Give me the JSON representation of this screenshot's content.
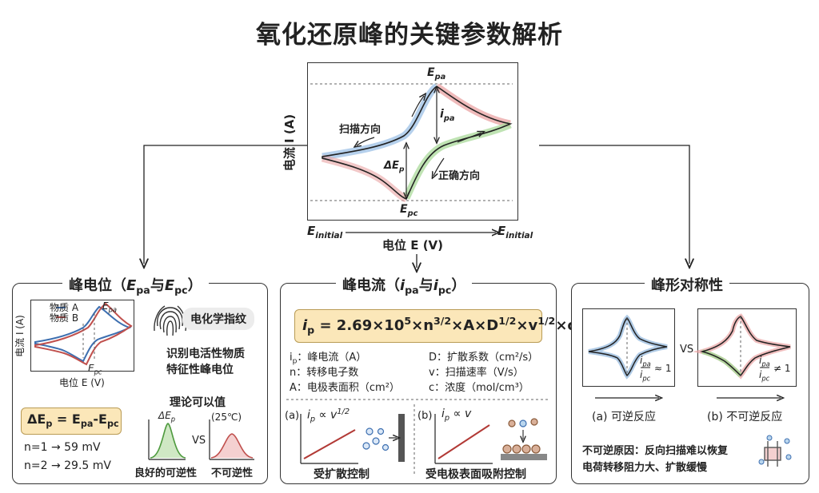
{
  "title": "氧化还原峰的关键参数解析",
  "main_cv": {
    "y_axis_label": "电流 I (A)",
    "x_axis_label": "电位 E (V)",
    "e_initial_left": "E",
    "e_initial_right": "E",
    "sub_initial": "initial",
    "epa": "E",
    "sub_pa": "pa",
    "ipa": "i",
    "ipa_sub": "pa",
    "epc": "E",
    "sub_pc": "pc",
    "delta_ep": "ΔE",
    "sub_p": "p",
    "scan_dir": "扫描方向",
    "forward_dir": "正确方向"
  },
  "left_panel": {
    "title_main": "峰电位（",
    "title_epa": "E",
    "title_epa_sub": "pa",
    "title_and": "与",
    "title_epc": "E",
    "title_epc_sub": "pc",
    "title_close": "）",
    "legend_a": "物质 A",
    "legend_b": "物质 B",
    "mini_epa": "E",
    "mini_epa_sub": "pa",
    "mini_epc": "E",
    "mini_epc_sub": "pc",
    "mini_y": "电流 I (A)",
    "mini_x": "电位 E (V)",
    "badge": "电化学指纹",
    "identify_1": "识别电活性物质",
    "identify_2": "特征性峰电位",
    "formula": "ΔE",
    "formula_sub": "p",
    "formula_eq": " = E",
    "formula_pa": "pa",
    "formula_minus": "-E",
    "formula_pc": "pc",
    "n1": "n=1 → 59 mV",
    "n2": "n=2 → 29.5 mV",
    "theory": "理论可以值",
    "small_dep": "ΔE",
    "small_dep_sub": "p",
    "vs": "VS",
    "temp": "(25℃)",
    "good_rev": "良好的可逆性",
    "irrev": "不可逆性"
  },
  "mid_panel": {
    "title_main": "峰电流（",
    "title_ipa": "i",
    "title_ipa_sub": "pa",
    "title_and": "与",
    "title_ipc": "i",
    "title_ipc_sub": "pc",
    "title_close": "）",
    "formula_ip": "i",
    "formula_ip_sub": "p",
    "formula_rest_1": " = 2.69×10",
    "formula_sup5": "5",
    "formula_rest_2": "×n",
    "formula_sup32": "3/2",
    "formula_rest_3": "×A×D",
    "formula_sup12a": "1/2",
    "formula_rest_4": "×v",
    "formula_sup12b": "1/2",
    "formula_rest_5": "×c",
    "def_ip": "i",
    "def_ip_sub": "p",
    "def_ip_text": "：峰电流（A）",
    "def_n": "n：转移电子数",
    "def_a": "A：电极表面积（cm²）",
    "def_d": "D：扩散系数（cm²/s）",
    "def_v": "v：扫描速率（V/s）",
    "def_c": "c：浓度（mol/cm³）",
    "a_label": "(a)",
    "a_rel": "i",
    "a_rel_sub": "p",
    "a_rel_text": " ∝ v",
    "a_rel_sup": "1/2",
    "b_label": "(b)",
    "b_rel": "i",
    "b_rel_sub": "p",
    "b_rel_text": " ∝ v",
    "a_caption": "受扩散控制",
    "b_caption": "受电极表面吸附控制"
  },
  "right_panel": {
    "title": "峰形对称性",
    "vs": "VS",
    "ratio_ipa": "i",
    "ratio_ipa_sub": "pa",
    "ratio_ipc": "i",
    "ratio_ipc_sub": "pc",
    "approx_1": "≈ 1",
    "neq_1": "≠ 1",
    "cap_a": "(a) 可逆反应",
    "cap_b": "(b) 不可逆反应",
    "reason_1": "不可逆原因：反向扫描难以恢复",
    "reason_2": "电荷转移阻力大、扩散缓慢"
  },
  "colors": {
    "blue": "#8fb5dc",
    "red": "#dc8f8f",
    "green": "#9fd08f",
    "formula_bg": "#fbe7b9",
    "line_dark": "#222222",
    "plot_red": "#c0504d",
    "plot_blue": "#3d6fb0"
  }
}
